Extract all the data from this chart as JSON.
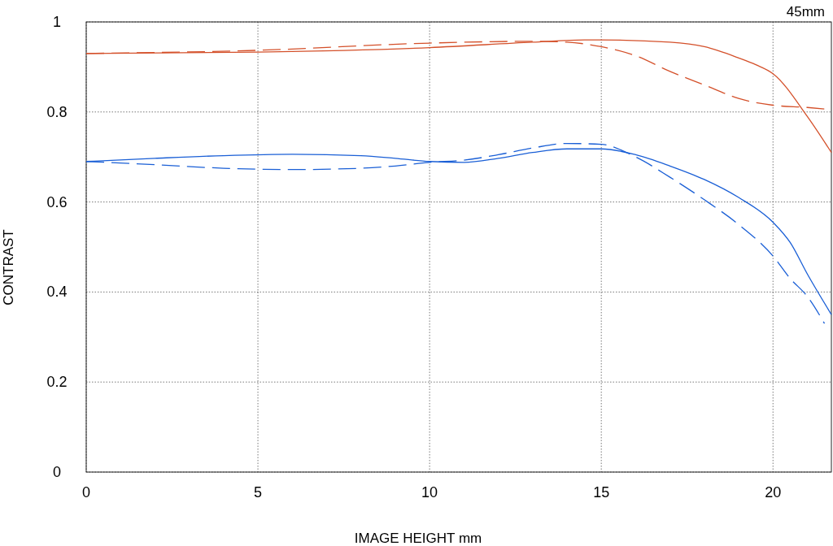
{
  "chart_data": {
    "type": "line",
    "title": "45mm",
    "xlabel": "IMAGE HEIGHT  mm",
    "ylabel": "CONTRAST",
    "xlim": [
      0,
      21.7
    ],
    "xticks": [
      0,
      5,
      10,
      15,
      20
    ],
    "ylim": [
      0,
      1
    ],
    "yticks": [
      0,
      0.2,
      0.4,
      0.6,
      0.8,
      1
    ],
    "grid": true,
    "series": [
      {
        "color": "#d4502a",
        "line_style": "solid",
        "x": [
          0,
          5,
          10,
          13,
          14.5,
          15,
          17,
          18,
          19,
          19.5,
          20,
          21,
          21.7
        ],
        "values": [
          0.93,
          0.933,
          0.943,
          0.955,
          0.96,
          0.96,
          0.955,
          0.945,
          0.92,
          0.905,
          0.885,
          0.79,
          0.71
        ]
      },
      {
        "color": "#d4502a",
        "line_style": "dashed",
        "x": [
          0,
          5,
          10,
          13,
          14,
          15,
          16,
          17,
          18,
          19,
          20,
          21,
          21.7
        ],
        "values": [
          0.93,
          0.937,
          0.953,
          0.957,
          0.955,
          0.945,
          0.925,
          0.89,
          0.86,
          0.83,
          0.815,
          0.81,
          0.805
        ]
      },
      {
        "color": "#1a5fd6",
        "line_style": "solid",
        "x": [
          0,
          2,
          4,
          6,
          8,
          9,
          10,
          11,
          12,
          13,
          14,
          15,
          16,
          17,
          18,
          19,
          20,
          20.5,
          21,
          21.7
        ],
        "values": [
          0.69,
          0.697,
          0.703,
          0.706,
          0.703,
          0.697,
          0.69,
          0.688,
          0.697,
          0.71,
          0.718,
          0.718,
          0.705,
          0.68,
          0.65,
          0.61,
          0.555,
          0.51,
          0.44,
          0.35
        ]
      },
      {
        "color": "#1a5fd6",
        "line_style": "dashed",
        "x": [
          0,
          2,
          4,
          6,
          8,
          9,
          10,
          11,
          12,
          13,
          14,
          15,
          16,
          17,
          18,
          19,
          20,
          20.5,
          21,
          21.5
        ],
        "values": [
          0.69,
          0.683,
          0.675,
          0.672,
          0.675,
          0.68,
          0.688,
          0.693,
          0.705,
          0.72,
          0.73,
          0.728,
          0.7,
          0.655,
          0.605,
          0.55,
          0.48,
          0.43,
          0.39,
          0.33
        ]
      }
    ]
  }
}
